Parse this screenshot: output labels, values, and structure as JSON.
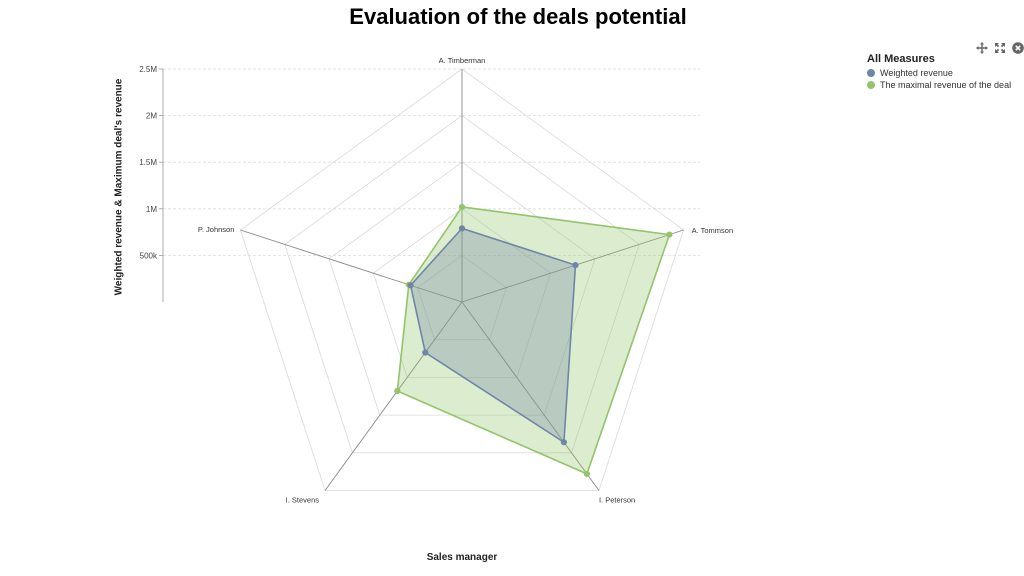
{
  "title": "Evaluation of the deals potential",
  "legend_title": "All Measures",
  "chart_data": {
    "type": "radar",
    "title": "Evaluation of the deals potential",
    "xlabel": "Sales manager",
    "ylabel": "Weighted revenue & Maximum deal's revenue",
    "categories": [
      "A. Timberman",
      "A. Tommson",
      "I. Peterson",
      "I. Stevens",
      "P. Johnson"
    ],
    "y_ticks": [
      "500k",
      "1M",
      "1.5M",
      "2M",
      "2.5M"
    ],
    "ylim": [
      0,
      2500000
    ],
    "grid": true,
    "legend_position": "top-right",
    "series": [
      {
        "name": "The maximal revenue of the deal",
        "color": "#93c46b",
        "values": [
          1020000,
          2340000,
          2280000,
          1180000,
          600000
        ]
      },
      {
        "name": "Weighted revenue",
        "color": "#6f86a6",
        "values": [
          790000,
          1280000,
          1860000,
          670000,
          580000
        ]
      }
    ]
  },
  "legend": [
    {
      "label": "Weighted revenue",
      "color": "#6f86a6"
    },
    {
      "label": "The maximal revenue of the deal",
      "color": "#93c46b"
    }
  ],
  "toolbar": {
    "icons": [
      "move-icon",
      "fullscreen-icon",
      "close-icon"
    ]
  }
}
